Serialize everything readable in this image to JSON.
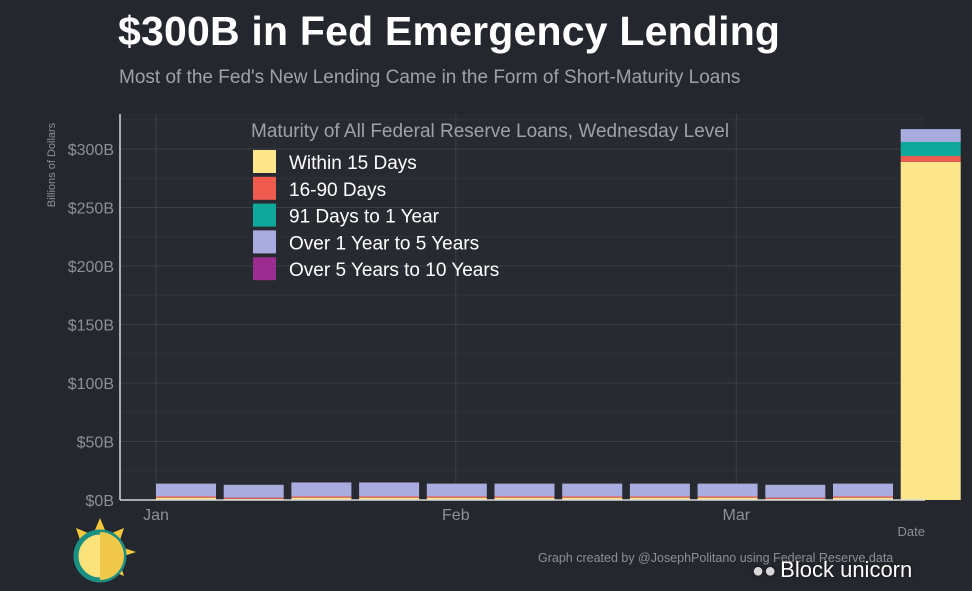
{
  "title": "$300B in Fed Emergency Lending",
  "subtitle": "Most of the Fed's New Lending Came in the Form of Short-Maturity Loans",
  "caption": "Graph created by @JosephPolitano using Federal Reserve data",
  "watermark": {
    "text": "Block unicorn",
    "icon": "wechat-icon"
  },
  "logo": {
    "icon": "sun-logo-icon"
  },
  "chart_data": {
    "type": "bar",
    "stacked": true,
    "legend_title": "Maturity of All Federal Reserve Loans, Wednesday Level",
    "legend_placement": "top-left",
    "xlabel": "Date",
    "ylabel": "Billions of Dollars",
    "ylim": [
      0,
      330
    ],
    "yticks": [
      0,
      50,
      100,
      150,
      200,
      250,
      300
    ],
    "ytick_labels": [
      "$0B",
      "$50B",
      "$100B",
      "$150B",
      "$200B",
      "$250B",
      "$300B"
    ],
    "x_tick_labels": [
      {
        "label": "Jan",
        "x": "2020-01-01"
      },
      {
        "label": "Feb",
        "x": "2020-02-01"
      },
      {
        "label": "Mar",
        "x": "2020-03-01"
      }
    ],
    "grid": true,
    "x": [
      "2020-01-01",
      "2020-01-08",
      "2020-01-15",
      "2020-01-22",
      "2020-01-29",
      "2020-02-05",
      "2020-02-12",
      "2020-02-19",
      "2020-02-26",
      "2020-03-04",
      "2020-03-11",
      "2020-03-18"
    ],
    "series": [
      {
        "name": "Within 15 Days",
        "color": "#fde58a",
        "values": [
          2,
          1,
          2,
          2,
          2,
          2,
          2,
          2,
          2,
          1,
          2,
          289
        ]
      },
      {
        "name": "16-90 Days",
        "color": "#ef5b4f",
        "values": [
          1,
          1,
          1,
          1,
          1,
          1,
          1,
          1,
          1,
          1,
          1,
          5
        ]
      },
      {
        "name": "91 Days to 1 Year",
        "color": "#0fa89c",
        "values": [
          0,
          0,
          0,
          0,
          0,
          0,
          0,
          0,
          0,
          0,
          0,
          12
        ]
      },
      {
        "name": "Over 1 Year to 5 Years",
        "color": "#a9acdf",
        "values": [
          11,
          11,
          12,
          12,
          11,
          11,
          11,
          11,
          11,
          11,
          11,
          11
        ]
      },
      {
        "name": "Over 5 Years to 10 Years",
        "color": "#9a2d8f",
        "values": [
          0,
          0,
          0,
          0,
          0,
          0,
          0,
          0,
          0,
          0,
          0,
          0
        ]
      }
    ]
  }
}
